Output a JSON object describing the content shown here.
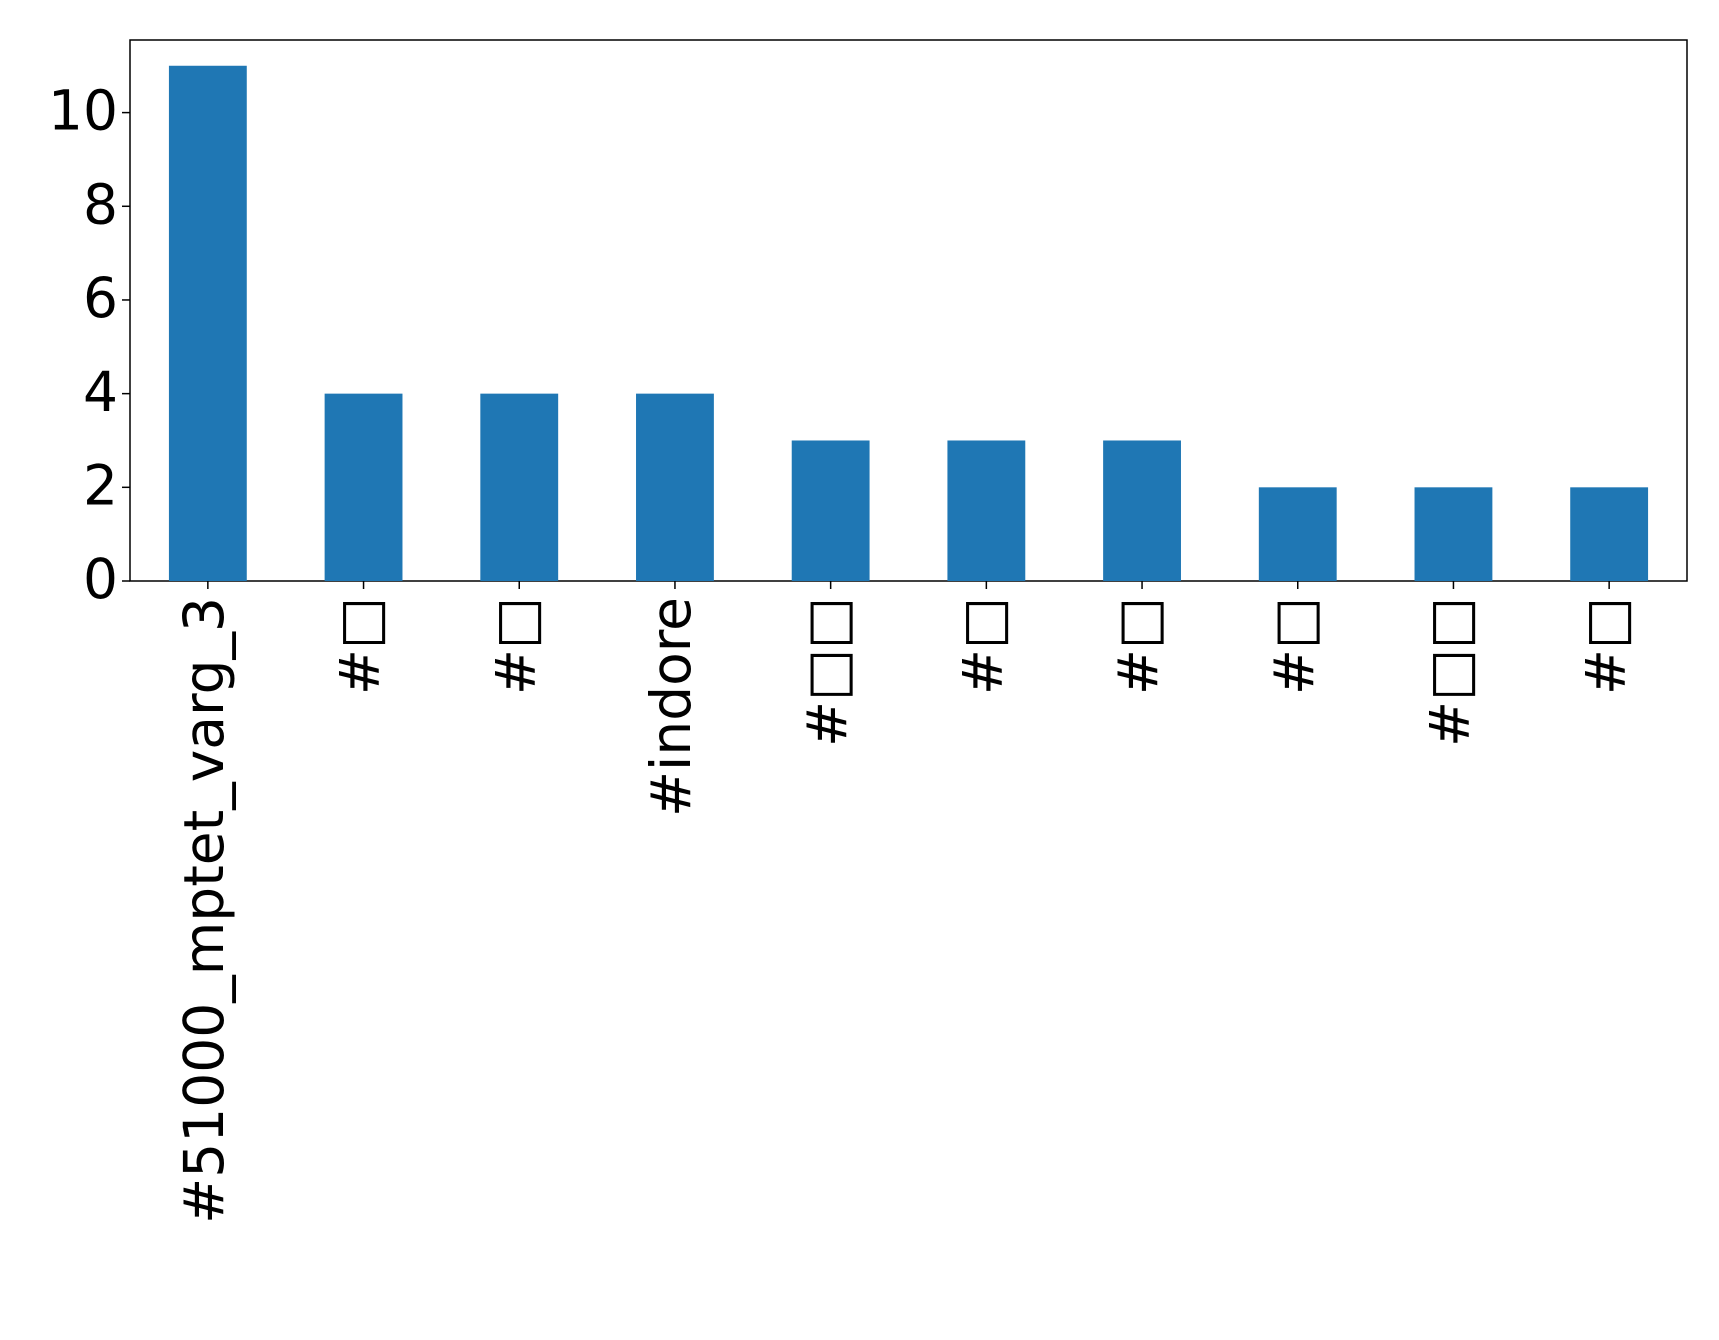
{
  "chart_data": {
    "type": "bar",
    "categories": [
      "#51000_mptet_varg_3",
      "#□",
      "#□",
      "#indore",
      "#□□",
      "#□",
      "#□",
      "#□",
      "#□□",
      "#□"
    ],
    "values": [
      11,
      4,
      4,
      4,
      3,
      3,
      3,
      2,
      2,
      2
    ],
    "color": "#1f77b4",
    "ylim": [
      0,
      11.55
    ],
    "yticks": [
      0,
      2,
      4,
      6,
      8,
      10
    ],
    "grid": false
  }
}
